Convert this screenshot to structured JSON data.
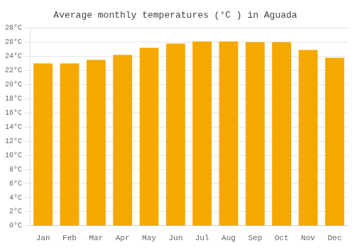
{
  "chart_data": {
    "type": "bar",
    "title": "Average monthly temperatures (°C ) in Aguada",
    "categories": [
      "Jan",
      "Feb",
      "Mar",
      "Apr",
      "May",
      "Jun",
      "Jul",
      "Aug",
      "Sep",
      "Oct",
      "Nov",
      "Dec"
    ],
    "values": [
      23.0,
      23.0,
      23.5,
      24.2,
      25.2,
      25.8,
      26.1,
      26.1,
      26.0,
      26.0,
      24.9,
      23.8
    ],
    "color": "#F5A800",
    "ylim": [
      0,
      28
    ],
    "yticks": [
      {
        "value": 0,
        "label": "0°C"
      },
      {
        "value": 2,
        "label": "2°C"
      },
      {
        "value": 4,
        "label": "4°C"
      },
      {
        "value": 6,
        "label": "6°C"
      },
      {
        "value": 8,
        "label": "8°C"
      },
      {
        "value": 10,
        "label": "10°C"
      },
      {
        "value": 12,
        "label": "12°C"
      },
      {
        "value": 14,
        "label": "14°C"
      },
      {
        "value": 16,
        "label": "16°C"
      },
      {
        "value": 18,
        "label": "18°C"
      },
      {
        "value": 20,
        "label": "20°C"
      },
      {
        "value": 22,
        "label": "22°C"
      },
      {
        "value": 24,
        "label": "24°C"
      },
      {
        "value": 26,
        "label": "26°C"
      },
      {
        "value": 28,
        "label": "28°C"
      }
    ],
    "grid": true
  }
}
